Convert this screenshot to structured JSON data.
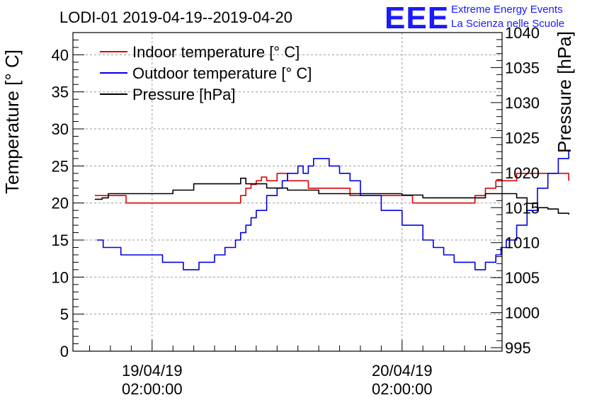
{
  "title": "LODI-01 2019-04-19--2019-04-20",
  "logo": {
    "mark": "EEE",
    "line1": "Extreme Energy Events",
    "line2": "La Scienza nelle Scuole",
    "color": "#1a1aff"
  },
  "chart_data": {
    "type": "line",
    "title": "LODI-01 2019-04-19--2019-04-20",
    "ylabel": "Temperature [° C]",
    "y2label": "Pressure [hPa]",
    "xlabel": "",
    "grid": true,
    "legend_position": "top-left",
    "ylim": [
      0,
      43
    ],
    "y2lim": [
      994.5,
      1040
    ],
    "yticks": [
      0,
      5,
      10,
      15,
      20,
      25,
      30,
      35,
      40
    ],
    "y2ticks": [
      995,
      1000,
      1005,
      1010,
      1015,
      1020,
      1025,
      1030,
      1035,
      1040
    ],
    "xlim_hours": [
      -7.6,
      33.6
    ],
    "xticks": [
      {
        "hour": 0,
        "date": "19/04/19",
        "time": "02:00:00"
      },
      {
        "hour": 24,
        "date": "20/04/19",
        "time": "02:00:00"
      }
    ],
    "series": [
      {
        "name": "Indoor temperature [° C]",
        "axis": "left",
        "color": "#e00000",
        "x": [
          -5.5,
          -3,
          -2.5,
          8,
          8.5,
          9,
          9.5,
          10,
          10.5,
          11,
          12,
          12.5,
          13,
          14,
          15,
          17,
          18,
          19,
          20,
          22,
          24,
          25,
          30.5,
          31,
          32,
          33,
          34,
          35,
          36,
          37,
          38,
          39,
          40
        ],
        "y": [
          21,
          21,
          20,
          20,
          21,
          22,
          22.5,
          23,
          23.5,
          23,
          24,
          24,
          23,
          23,
          22,
          22,
          22,
          21,
          21,
          21,
          21,
          20,
          20,
          21,
          22,
          23,
          23,
          24,
          24,
          24,
          24,
          24,
          23
        ]
      },
      {
        "name": "Outdoor temperature [° C]",
        "axis": "left",
        "color": "#0000e0",
        "x": [
          -5.3,
          -4.7,
          -4,
          -3,
          -1.5,
          1,
          3,
          4,
          4.5,
          5,
          6,
          7,
          8,
          8.5,
          9,
          9.5,
          10,
          11,
          12,
          12.5,
          13,
          13.5,
          14,
          14.5,
          15,
          15.5,
          16,
          17,
          18,
          19,
          20,
          22,
          24,
          26,
          27,
          28,
          29,
          30,
          31,
          32,
          33,
          33.5,
          34,
          35,
          36,
          37,
          38,
          39,
          40
        ],
        "y": [
          15,
          14,
          14,
          13,
          13,
          12,
          11,
          11,
          12,
          12,
          13,
          14,
          15,
          16,
          17,
          18,
          19,
          21,
          22,
          23,
          24,
          24,
          25,
          24,
          25,
          26,
          26,
          25,
          24,
          23,
          21,
          19,
          17,
          15,
          14,
          13,
          12,
          12,
          11,
          12,
          13,
          14,
          15,
          17,
          19,
          22,
          24,
          26,
          27
        ]
      },
      {
        "name": "Pressure [hPa]",
        "axis": "right",
        "color": "#000000",
        "x": [
          -5.5,
          -4.8,
          -4.2,
          -3,
          0,
          2,
          4,
          6,
          8,
          8.5,
          9,
          10,
          11,
          12,
          13,
          15,
          16,
          18,
          20,
          23,
          24,
          26,
          29,
          30,
          32,
          33,
          34,
          35,
          36,
          37,
          38,
          39,
          40
        ],
        "y": [
          1016.2,
          1016.4,
          1017,
          1017,
          1017,
          1017.5,
          1018.4,
          1018.4,
          1018.4,
          1019.2,
          1018.4,
          1018.4,
          1017.8,
          1017.8,
          1017.5,
          1017.5,
          1017,
          1017,
          1017,
          1017,
          1016.8,
          1016.4,
          1016.4,
          1016.4,
          1017,
          1017,
          1017,
          1016.4,
          1015.6,
          1015,
          1014.8,
          1014.2,
          1014
        ]
      }
    ]
  }
}
